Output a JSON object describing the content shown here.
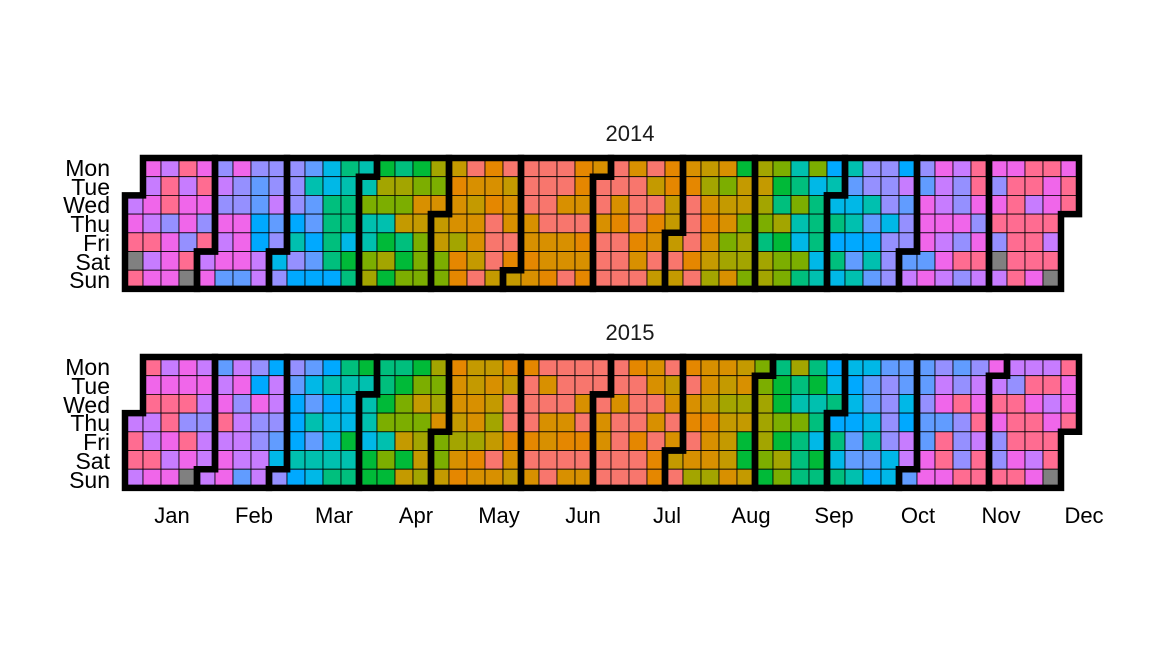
{
  "chart_data": {
    "type": "heatmap",
    "subtype": "calendar",
    "day_labels": [
      "Mon",
      "Tue",
      "Wed",
      "Thu",
      "Fri",
      "Sat",
      "Sun"
    ],
    "month_labels": [
      "Jan",
      "Feb",
      "Mar",
      "Apr",
      "May",
      "Jun",
      "Jul",
      "Aug",
      "Sep",
      "Oct",
      "Nov",
      "Dec"
    ],
    "panels": [
      {
        "title": "2014",
        "year": 2014
      },
      {
        "title": "2015",
        "year": 2015
      }
    ],
    "value_description": "Each day cell is colored by a value that follows a seasonal cycle: pink/purple in winter, blue/teal in spring and autumn, green in spring/late summer, orange/salmon peaking in June–July.",
    "palette": [
      "#FF6C91",
      "#F066EA",
      "#C77CFF",
      "#9590FF",
      "#619CFF",
      "#00A9FF",
      "#00B8E7",
      "#00C0AF",
      "#00BF7D",
      "#00BA38",
      "#7CAE00",
      "#A3A500",
      "#C49A00",
      "#D89000",
      "#E58700",
      "#F8766D"
    ],
    "missing_color": "#808080",
    "missing_days": [
      {
        "year": 2014,
        "month": 1,
        "day": 4
      },
      {
        "year": 2014,
        "month": 1,
        "day": 26
      },
      {
        "year": 2014,
        "month": 12,
        "day": 6
      },
      {
        "year": 2014,
        "month": 12,
        "day": 28
      },
      {
        "year": 2015,
        "month": 1,
        "day": 25
      },
      {
        "year": 2015,
        "month": 12,
        "day": 27
      }
    ],
    "month_border_color": "#000000",
    "cell_grid_color": "#000000"
  }
}
